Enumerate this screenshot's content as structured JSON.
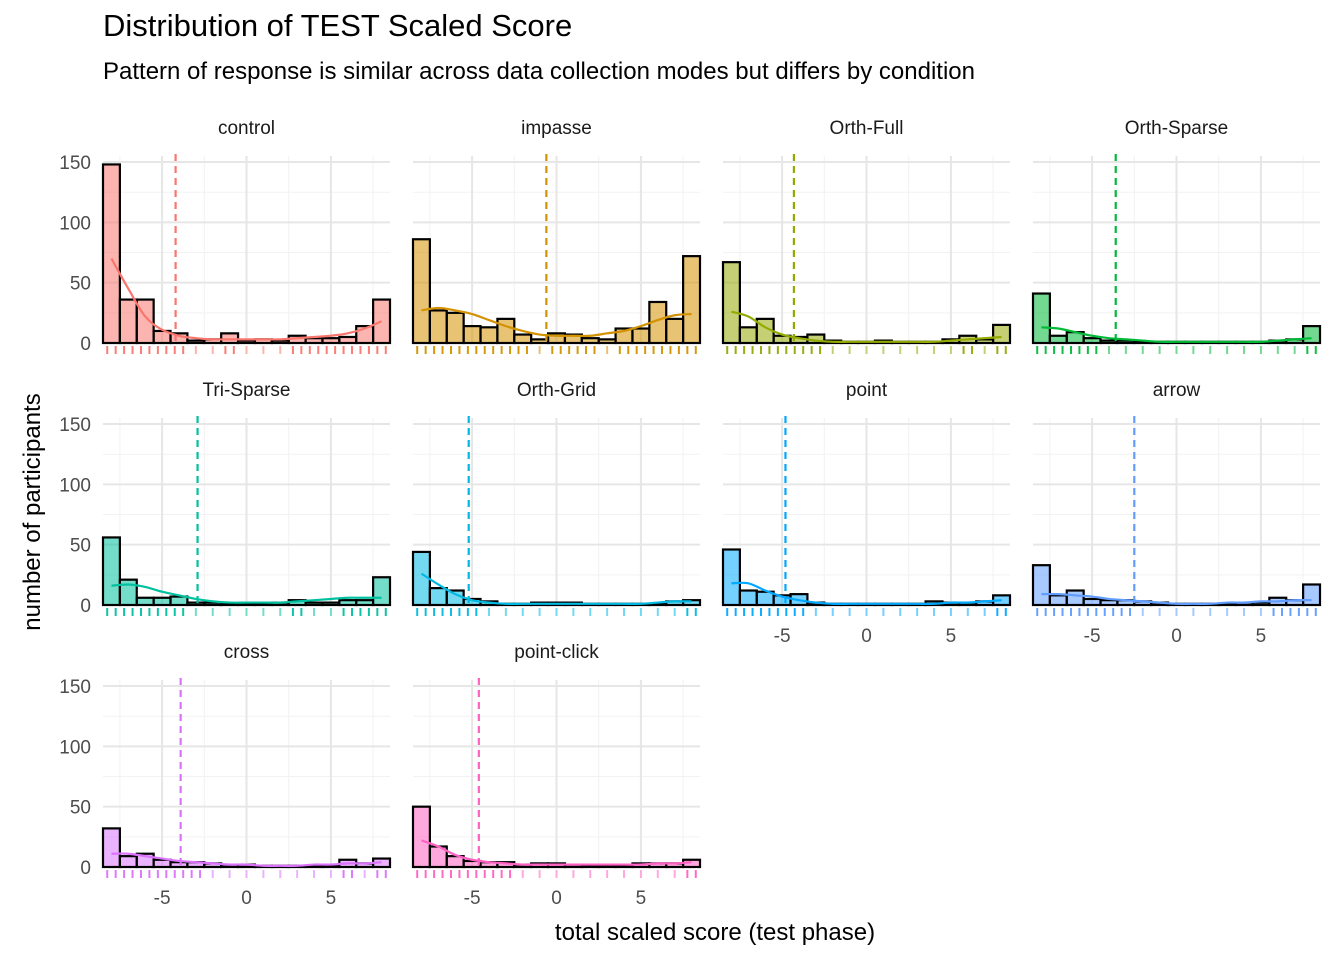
{
  "chart_data": {
    "type": "bar",
    "title": "Distribution of TEST Scaled Score",
    "subtitle": "Pattern of response is similar across data collection modes but differs by condition",
    "xlabel": "total scaled score (test phase)",
    "ylabel": "number of participants",
    "xlim": [
      -8.5,
      8.5
    ],
    "ylim": [
      0,
      155
    ],
    "x_ticks": [
      -5,
      0,
      5
    ],
    "y_ticks": [
      0,
      50,
      100,
      150
    ],
    "bin_centers": [
      -8,
      -7,
      -6,
      -5,
      -4,
      -3,
      -2,
      -1,
      0,
      1,
      2,
      3,
      4,
      5,
      6,
      7,
      8
    ],
    "grid": true,
    "legend": "none",
    "panels": [
      {
        "name": "control",
        "color": "#F8766D",
        "mean": -4.2,
        "values": [
          148,
          36,
          36,
          10,
          8,
          2,
          3,
          8,
          2,
          3,
          2,
          6,
          4,
          4,
          5,
          14,
          36
        ],
        "density": [
          70,
          45,
          22,
          11,
          6,
          4,
          3,
          3,
          3,
          3,
          3,
          4,
          5,
          6,
          8,
          12,
          18
        ]
      },
      {
        "name": "impasse",
        "color": "#D39200",
        "mean": -0.6,
        "values": [
          86,
          27,
          25,
          14,
          13,
          20,
          7,
          3,
          8,
          7,
          4,
          3,
          12,
          12,
          34,
          20,
          72
        ],
        "density": [
          27,
          29,
          27,
          24,
          19,
          14,
          10,
          7,
          6,
          6,
          6,
          8,
          10,
          14,
          19,
          23,
          24
        ]
      },
      {
        "name": "Orth-Full",
        "color": "#93AA00",
        "mean": -4.3,
        "values": [
          67,
          13,
          20,
          6,
          5,
          7,
          2,
          1,
          1,
          2,
          1,
          1,
          1,
          3,
          6,
          3,
          15
        ],
        "density": [
          26,
          22,
          13,
          7,
          4,
          2,
          1,
          1,
          1,
          1,
          1,
          1,
          1,
          2,
          3,
          4,
          5
        ]
      },
      {
        "name": "Orth-Sparse",
        "color": "#00BA38",
        "mean": -3.6,
        "values": [
          41,
          6,
          9,
          4,
          2,
          2,
          1,
          1,
          1,
          1,
          1,
          1,
          1,
          1,
          2,
          3,
          14
        ],
        "density": [
          13,
          12,
          9,
          6,
          4,
          3,
          2,
          1,
          1,
          1,
          1,
          1,
          1,
          1,
          2,
          3,
          4
        ]
      },
      {
        "name": "Tri-Sparse",
        "color": "#00C19F",
        "mean": -2.9,
        "values": [
          56,
          21,
          6,
          6,
          7,
          2,
          2,
          1,
          1,
          1,
          2,
          4,
          2,
          2,
          4,
          4,
          23
        ],
        "density": [
          16,
          17,
          15,
          11,
          8,
          5,
          3,
          2,
          2,
          2,
          2,
          3,
          4,
          5,
          6,
          6,
          6
        ]
      },
      {
        "name": "Orth-Grid",
        "color": "#00B9E3",
        "mean": -5.2,
        "values": [
          44,
          14,
          12,
          5,
          3,
          1,
          1,
          2,
          2,
          2,
          1,
          1,
          1,
          1,
          1,
          3,
          4
        ],
        "density": [
          26,
          17,
          9,
          4,
          2,
          1,
          1,
          1,
          1,
          1,
          1,
          1,
          1,
          1,
          2,
          3,
          3
        ]
      },
      {
        "name": "point",
        "color": "#00A9FF",
        "mean": -4.8,
        "values": [
          46,
          12,
          11,
          8,
          9,
          2,
          1,
          1,
          1,
          1,
          1,
          1,
          3,
          2,
          2,
          3,
          8
        ],
        "density": [
          18,
          18,
          12,
          7,
          4,
          2,
          1,
          1,
          1,
          1,
          1,
          1,
          1,
          2,
          2,
          3,
          4
        ]
      },
      {
        "name": "arrow",
        "color": "#619CFF",
        "mean": -2.5,
        "values": [
          33,
          8,
          12,
          5,
          4,
          4,
          3,
          2,
          1,
          1,
          1,
          1,
          2,
          2,
          6,
          4,
          17
        ],
        "density": [
          9,
          9,
          8,
          7,
          5,
          4,
          3,
          2,
          1,
          1,
          1,
          2,
          2,
          3,
          3,
          4,
          4
        ]
      },
      {
        "name": "cross",
        "color": "#DB72FB",
        "mean": -3.9,
        "values": [
          32,
          9,
          11,
          6,
          4,
          4,
          3,
          2,
          2,
          1,
          1,
          1,
          1,
          1,
          6,
          3,
          7
        ],
        "density": [
          11,
          11,
          9,
          7,
          5,
          4,
          3,
          2,
          2,
          1,
          1,
          1,
          2,
          2,
          3,
          3,
          4
        ]
      },
      {
        "name": "point-click",
        "color": "#FF61C3",
        "mean": -4.6,
        "values": [
          50,
          17,
          9,
          5,
          4,
          4,
          2,
          3,
          3,
          2,
          1,
          1,
          1,
          3,
          3,
          3,
          6
        ],
        "density": [
          22,
          17,
          10,
          6,
          4,
          3,
          2,
          2,
          2,
          2,
          2,
          2,
          2,
          2,
          3,
          3,
          4
        ]
      }
    ]
  }
}
